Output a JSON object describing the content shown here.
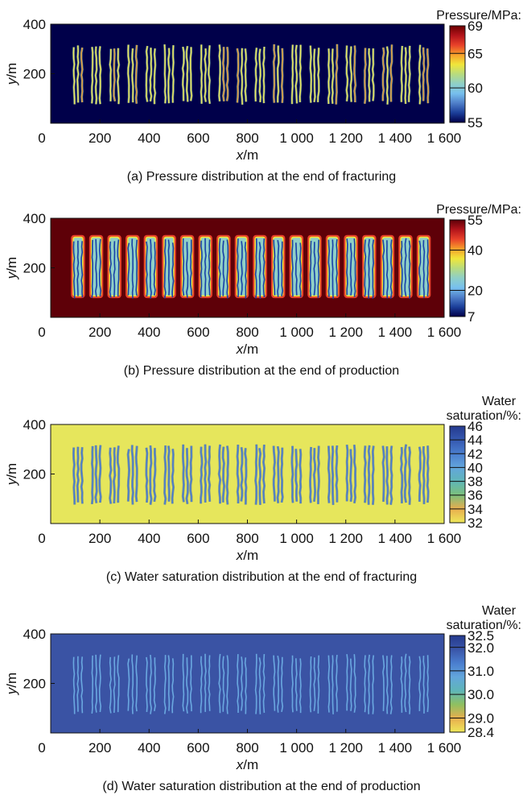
{
  "chart_data": [
    {
      "type": "heatmap",
      "panel": "a",
      "caption": "(a) Pressure distribution at the end of fracturing",
      "xlabel": "x/m",
      "ylabel": "y/m",
      "xlim": [
        0,
        1600
      ],
      "ylim": [
        0,
        400
      ],
      "xticks": [
        0,
        200,
        400,
        600,
        800,
        1000,
        1200,
        1400,
        1600
      ],
      "xtick_labels": [
        "0",
        "200",
        "400",
        "600",
        "800",
        "1 000",
        "1 200",
        "1 400",
        "1 600"
      ],
      "yticks": [
        200,
        400
      ],
      "ytick_labels": [
        "200",
        "400"
      ],
      "colorbar": {
        "title": [
          "Pressure/MPa:"
        ],
        "range": [
          55,
          69
        ],
        "ticks": [
          55,
          60,
          65,
          69
        ],
        "tick_labels": [
          "55",
          "60",
          "65",
          "69"
        ],
        "colormap": [
          "#00004a",
          "#1c3f9a",
          "#4f7fc9",
          "#77c0ee",
          "#8fd0c7",
          "#b8dc7e",
          "#f0e63a",
          "#f7a02a",
          "#e8412a",
          "#b3141b",
          "#6b0000"
        ]
      },
      "background_value": 55,
      "fracture_value": 64,
      "background_color": "#00004a",
      "fracture_colors": [
        "#e8e35a",
        "#8fd0c7",
        "#e26a2c"
      ],
      "stages": 20,
      "fractures_per_stage": 3,
      "fracture_x_start_m": 95,
      "stage_spacing_m": 74,
      "fracture_spacing_m": 16,
      "fracture_y_range_m": [
        90,
        320
      ]
    },
    {
      "type": "heatmap",
      "panel": "b",
      "caption": "(b) Pressure distribution at the end of production",
      "xlabel": "x/m",
      "ylabel": "y/m",
      "xlim": [
        0,
        1600
      ],
      "ylim": [
        0,
        400
      ],
      "xticks": [
        0,
        200,
        400,
        600,
        800,
        1000,
        1200,
        1400,
        1600
      ],
      "xtick_labels": [
        "0",
        "200",
        "400",
        "600",
        "800",
        "1 000",
        "1 200",
        "1 400",
        "1 600"
      ],
      "yticks": [
        200,
        400
      ],
      "ytick_labels": [
        "200",
        "400"
      ],
      "colorbar": {
        "title": [
          "Pressure/MPa:"
        ],
        "range": [
          7,
          55
        ],
        "ticks": [
          7,
          20,
          40,
          55
        ],
        "tick_labels": [
          "7",
          "20",
          "40",
          "55"
        ],
        "colormap": [
          "#00004a",
          "#1c3f9a",
          "#4f7fc9",
          "#77c0ee",
          "#8fd0c7",
          "#b8dc7e",
          "#f0e63a",
          "#f7a02a",
          "#e8412a",
          "#b3141b",
          "#5e0008"
        ]
      },
      "background_value": 55,
      "fracture_value": 10,
      "background_color": "#5e0008",
      "fracture_colors": [
        "#1840a8",
        "#8fd0c7",
        "#e8e35a"
      ],
      "stages": 20,
      "fractures_per_stage": 3,
      "fracture_x_start_m": 95,
      "stage_spacing_m": 74,
      "fracture_spacing_m": 16,
      "fracture_y_range_m": [
        90,
        320
      ]
    },
    {
      "type": "heatmap",
      "panel": "c",
      "caption": "(c) Water saturation distribution at the end of fracturing",
      "xlabel": "x/m",
      "ylabel": "y/m",
      "xlim": [
        0,
        1600
      ],
      "ylim": [
        0,
        400
      ],
      "xticks": [
        0,
        200,
        400,
        600,
        800,
        1000,
        1200,
        1400,
        1600
      ],
      "xtick_labels": [
        "0",
        "200",
        "400",
        "600",
        "800",
        "1 000",
        "1 200",
        "1 400",
        "1 600"
      ],
      "yticks": [
        200,
        400
      ],
      "ytick_labels": [
        "200",
        "400"
      ],
      "colorbar": {
        "title": [
          "Water",
          "saturation/%:"
        ],
        "range": [
          32,
          46
        ],
        "ticks": [
          32,
          34,
          36,
          38,
          40,
          42,
          44,
          46
        ],
        "tick_labels": [
          "32",
          "34",
          "36",
          "38",
          "40",
          "42",
          "44",
          "46"
        ],
        "colormap": [
          "#eee85a",
          "#e8ae4e",
          "#7cbf7a",
          "#5fb6b8",
          "#63a6dc",
          "#4a7ecf",
          "#3558b0",
          "#253a8e"
        ]
      },
      "background_value": 32,
      "fracture_value": 42,
      "background_color": "#e6e65c",
      "fracture_colors": [
        "#4a7ecf",
        "#3558b0"
      ],
      "stages": 20,
      "fractures_per_stage": 3,
      "fracture_x_start_m": 95,
      "stage_spacing_m": 74,
      "fracture_spacing_m": 16,
      "fracture_y_range_m": [
        90,
        320
      ]
    },
    {
      "type": "heatmap",
      "panel": "d",
      "caption": "(d) Water saturation distribution at the end of production",
      "xlabel": "x/m",
      "ylabel": "y/m",
      "xlim": [
        0,
        1600
      ],
      "ylim": [
        0,
        400
      ],
      "xticks": [
        0,
        200,
        400,
        600,
        800,
        1000,
        1200,
        1400,
        1600
      ],
      "xtick_labels": [
        "0",
        "200",
        "400",
        "600",
        "800",
        "1 000",
        "1 200",
        "1 400",
        "1 600"
      ],
      "yticks": [
        200,
        400
      ],
      "ytick_labels": [
        "200",
        "400"
      ],
      "colorbar": {
        "title": [
          "Water",
          "saturation/%:"
        ],
        "range": [
          28.4,
          32.5
        ],
        "ticks": [
          28.4,
          29.0,
          30.0,
          31.0,
          32.0,
          32.5
        ],
        "tick_labels": [
          "28.4",
          "29.0",
          "30.0",
          "31.0",
          "32.0",
          "32.5"
        ],
        "colormap": [
          "#eee85a",
          "#e8ae4e",
          "#8fc060",
          "#5fb6b8",
          "#63a6dc",
          "#4a7ecf",
          "#3a55a8",
          "#253a8e"
        ]
      },
      "background_value": 32.0,
      "fracture_value": 31.0,
      "background_color": "#3a53a4",
      "fracture_colors": [
        "#6aa8e0",
        "#8fd0c7"
      ],
      "stages": 20,
      "fractures_per_stage": 3,
      "fracture_x_start_m": 95,
      "stage_spacing_m": 74,
      "fracture_spacing_m": 16,
      "fracture_y_range_m": [
        90,
        320
      ]
    }
  ]
}
